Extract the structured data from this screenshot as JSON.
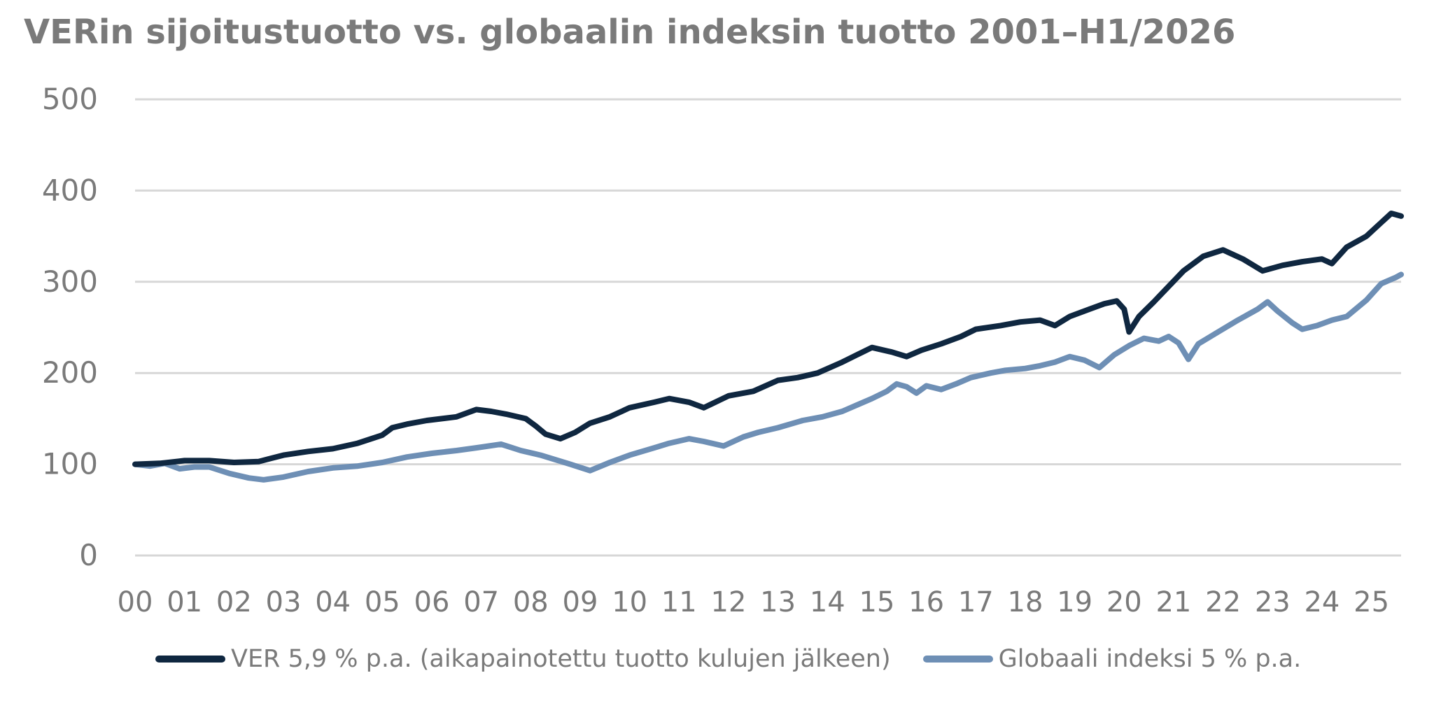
{
  "colors": {
    "ver": "#0f2740",
    "index": "#6e8fb5",
    "grid": "#d7d7d7",
    "text": "#7a7a7a"
  },
  "chart_data": {
    "type": "line",
    "title": "VERin sijoitustuotto vs. globaalin indeksin tuotto 2001–H1/2026",
    "xlabel": "",
    "ylabel": "",
    "ylim": [
      0,
      500
    ],
    "y_ticks": [
      "0",
      "100",
      "200",
      "300",
      "400",
      "500"
    ],
    "x_tick_labels": [
      "00",
      "01",
      "02",
      "03",
      "04",
      "05",
      "06",
      "07",
      "08",
      "09",
      "10",
      "11",
      "12",
      "13",
      "14",
      "15",
      "16",
      "17",
      "18",
      "19",
      "20",
      "21",
      "22",
      "23",
      "24",
      "25"
    ],
    "xlim": [
      2000,
      2025.6
    ],
    "grid": true,
    "legend_position": "bottom",
    "series": [
      {
        "name": "VER 5,9 % p.a. (aikapainotettu tuotto kulujen jälkeen)",
        "color": "#0f2740",
        "points": [
          [
            2000.0,
            100
          ],
          [
            2000.5,
            101
          ],
          [
            2001.0,
            104
          ],
          [
            2001.5,
            104
          ],
          [
            2002.0,
            102
          ],
          [
            2002.5,
            103
          ],
          [
            2003.0,
            110
          ],
          [
            2003.5,
            114
          ],
          [
            2004.0,
            117
          ],
          [
            2004.5,
            123
          ],
          [
            2005.0,
            132
          ],
          [
            2005.2,
            140
          ],
          [
            2005.5,
            144
          ],
          [
            2005.9,
            148
          ],
          [
            2006.5,
            152
          ],
          [
            2006.9,
            160
          ],
          [
            2007.2,
            158
          ],
          [
            2007.5,
            155
          ],
          [
            2007.9,
            150
          ],
          [
            2008.1,
            142
          ],
          [
            2008.3,
            133
          ],
          [
            2008.6,
            128
          ],
          [
            2008.9,
            135
          ],
          [
            2009.2,
            145
          ],
          [
            2009.6,
            152
          ],
          [
            2010.0,
            162
          ],
          [
            2010.5,
            168
          ],
          [
            2010.8,
            172
          ],
          [
            2011.2,
            168
          ],
          [
            2011.5,
            162
          ],
          [
            2012.0,
            175
          ],
          [
            2012.5,
            180
          ],
          [
            2013.0,
            192
          ],
          [
            2013.4,
            195
          ],
          [
            2013.8,
            200
          ],
          [
            2014.3,
            212
          ],
          [
            2014.6,
            220
          ],
          [
            2014.9,
            228
          ],
          [
            2015.3,
            223
          ],
          [
            2015.6,
            218
          ],
          [
            2015.9,
            225
          ],
          [
            2016.3,
            232
          ],
          [
            2016.7,
            240
          ],
          [
            2017.0,
            248
          ],
          [
            2017.5,
            252
          ],
          [
            2017.9,
            256
          ],
          [
            2018.3,
            258
          ],
          [
            2018.6,
            252
          ],
          [
            2018.9,
            262
          ],
          [
            2019.3,
            270
          ],
          [
            2019.6,
            276
          ],
          [
            2019.85,
            279
          ],
          [
            2020.0,
            270
          ],
          [
            2020.1,
            245
          ],
          [
            2020.3,
            262
          ],
          [
            2020.6,
            278
          ],
          [
            2020.9,
            295
          ],
          [
            2021.2,
            312
          ],
          [
            2021.6,
            328
          ],
          [
            2022.0,
            335
          ],
          [
            2022.4,
            325
          ],
          [
            2022.8,
            312
          ],
          [
            2023.2,
            318
          ],
          [
            2023.6,
            322
          ],
          [
            2024.0,
            325
          ],
          [
            2024.2,
            320
          ],
          [
            2024.5,
            338
          ],
          [
            2024.9,
            350
          ],
          [
            2025.2,
            365
          ],
          [
            2025.4,
            375
          ],
          [
            2025.6,
            372
          ]
        ]
      },
      {
        "name": "Globaali indeksi 5 % p.a.",
        "color": "#6e8fb5",
        "points": [
          [
            2000.0,
            100
          ],
          [
            2000.3,
            98
          ],
          [
            2000.6,
            101
          ],
          [
            2000.9,
            95
          ],
          [
            2001.2,
            97
          ],
          [
            2001.5,
            97
          ],
          [
            2001.9,
            90
          ],
          [
            2002.3,
            85
          ],
          [
            2002.6,
            83
          ],
          [
            2003.0,
            86
          ],
          [
            2003.5,
            92
          ],
          [
            2004.0,
            96
          ],
          [
            2004.5,
            98
          ],
          [
            2005.0,
            102
          ],
          [
            2005.5,
            108
          ],
          [
            2006.0,
            112
          ],
          [
            2006.5,
            115
          ],
          [
            2006.9,
            118
          ],
          [
            2007.4,
            122
          ],
          [
            2007.8,
            115
          ],
          [
            2008.2,
            110
          ],
          [
            2008.5,
            105
          ],
          [
            2008.8,
            100
          ],
          [
            2009.2,
            93
          ],
          [
            2009.6,
            102
          ],
          [
            2010.0,
            110
          ],
          [
            2010.5,
            118
          ],
          [
            2010.8,
            123
          ],
          [
            2011.2,
            128
          ],
          [
            2011.5,
            125
          ],
          [
            2011.9,
            120
          ],
          [
            2012.3,
            130
          ],
          [
            2012.6,
            135
          ],
          [
            2013.0,
            140
          ],
          [
            2013.5,
            148
          ],
          [
            2013.9,
            152
          ],
          [
            2014.3,
            158
          ],
          [
            2014.6,
            165
          ],
          [
            2014.9,
            172
          ],
          [
            2015.2,
            180
          ],
          [
            2015.4,
            188
          ],
          [
            2015.6,
            185
          ],
          [
            2015.8,
            178
          ],
          [
            2016.0,
            186
          ],
          [
            2016.3,
            182
          ],
          [
            2016.6,
            188
          ],
          [
            2016.9,
            195
          ],
          [
            2017.3,
            200
          ],
          [
            2017.6,
            203
          ],
          [
            2018.0,
            205
          ],
          [
            2018.3,
            208
          ],
          [
            2018.6,
            212
          ],
          [
            2018.9,
            218
          ],
          [
            2019.2,
            214
          ],
          [
            2019.5,
            206
          ],
          [
            2019.8,
            220
          ],
          [
            2020.1,
            230
          ],
          [
            2020.4,
            238
          ],
          [
            2020.7,
            235
          ],
          [
            2020.9,
            240
          ],
          [
            2021.1,
            233
          ],
          [
            2021.3,
            215
          ],
          [
            2021.5,
            232
          ],
          [
            2021.9,
            245
          ],
          [
            2022.3,
            258
          ],
          [
            2022.7,
            270
          ],
          [
            2022.9,
            278
          ],
          [
            2023.1,
            268
          ],
          [
            2023.4,
            255
          ],
          [
            2023.6,
            248
          ],
          [
            2023.9,
            252
          ],
          [
            2024.2,
            258
          ],
          [
            2024.5,
            262
          ],
          [
            2024.9,
            280
          ],
          [
            2025.2,
            298
          ],
          [
            2025.5,
            305
          ],
          [
            2025.6,
            308
          ]
        ]
      }
    ]
  }
}
